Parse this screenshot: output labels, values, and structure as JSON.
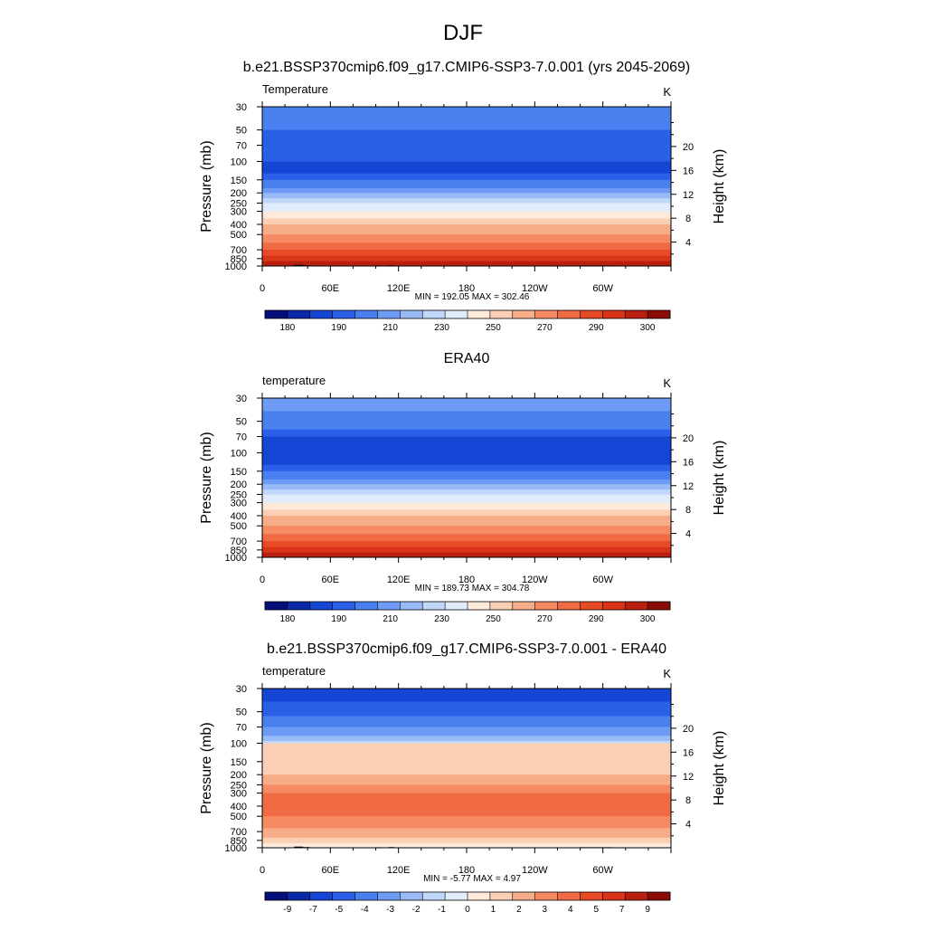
{
  "figure": {
    "title": "DJF"
  },
  "chart_data": [
    {
      "type": "heatmap",
      "title": "b.e21.BSSP370cmip6.f09_g17.CMIP6-SSP3-7.0.001 (yrs 2045-2069)",
      "variable_label": "Temperature",
      "units": "K",
      "ylabel": "Pressure (mb)",
      "y2label": "Height (km)",
      "x_ticks": [
        "0",
        "60E",
        "120E",
        "180",
        "120W",
        "60W"
      ],
      "x_tick_values": [
        0,
        60,
        120,
        180,
        240,
        300
      ],
      "xlim": [
        0,
        360
      ],
      "y_ticks": [
        30,
        50,
        70,
        100,
        150,
        200,
        250,
        300,
        400,
        500,
        700,
        850,
        1000
      ],
      "ylim": [
        1000,
        30
      ],
      "y2_ticks": [
        4,
        8,
        12,
        16,
        20
      ],
      "stats": "MIN = 192.05  MAX = 302.46",
      "colorbar_labels": [
        "180",
        "190",
        "210",
        "230",
        "250",
        "270",
        "290",
        "300"
      ],
      "colorbar_colors": [
        "#040f7a",
        "#0a29a8",
        "#1545d4",
        "#2a5fe8",
        "#4a7ff0",
        "#6e9cf4",
        "#98bbf7",
        "#c0d7fa",
        "#e0ecfc",
        "#fdeadb",
        "#fbcfb4",
        "#f8ad8a",
        "#f58a63",
        "#f06a43",
        "#e84a25",
        "#d93318",
        "#b81f0e",
        "#8a0c05"
      ],
      "profile": [
        {
          "p": 30,
          "c": 4
        },
        {
          "p": 45,
          "c": 4
        },
        {
          "p": 50,
          "c": 3
        },
        {
          "p": 100,
          "c": 2
        },
        {
          "p": 130,
          "c": 3
        },
        {
          "p": 150,
          "c": 4
        },
        {
          "p": 180,
          "c": 5
        },
        {
          "p": 200,
          "c": 6
        },
        {
          "p": 225,
          "c": 7
        },
        {
          "p": 250,
          "c": 8
        },
        {
          "p": 300,
          "c": 9
        },
        {
          "p": 350,
          "c": 10
        },
        {
          "p": 400,
          "c": 11
        },
        {
          "p": 500,
          "c": 12
        },
        {
          "p": 600,
          "c": 13
        },
        {
          "p": 700,
          "c": 14
        },
        {
          "p": 800,
          "c": 15
        },
        {
          "p": 900,
          "c": 16
        },
        {
          "p": 1000,
          "c": 16
        }
      ],
      "topography": true
    },
    {
      "type": "heatmap",
      "title": "ERA40",
      "variable_label": "temperature",
      "units": "K",
      "ylabel": "Pressure (mb)",
      "y2label": "Height (km)",
      "x_ticks": [
        "0",
        "60E",
        "120E",
        "180",
        "120W",
        "60W"
      ],
      "x_tick_values": [
        0,
        60,
        120,
        180,
        240,
        300
      ],
      "xlim": [
        0,
        360
      ],
      "y_ticks": [
        30,
        50,
        70,
        100,
        150,
        200,
        250,
        300,
        400,
        500,
        700,
        850,
        1000
      ],
      "ylim": [
        1000,
        30
      ],
      "y2_ticks": [
        4,
        8,
        12,
        16,
        20
      ],
      "stats": "MIN = 189.73  MAX = 304.78",
      "colorbar_labels": [
        "180",
        "190",
        "210",
        "230",
        "250",
        "270",
        "290",
        "300"
      ],
      "colorbar_colors": [
        "#040f7a",
        "#0a29a8",
        "#1545d4",
        "#2a5fe8",
        "#4a7ff0",
        "#6e9cf4",
        "#98bbf7",
        "#c0d7fa",
        "#e0ecfc",
        "#fdeadb",
        "#fbcfb4",
        "#f8ad8a",
        "#f58a63",
        "#f06a43",
        "#e84a25",
        "#d93318",
        "#b81f0e",
        "#8a0c05"
      ],
      "profile": [
        {
          "p": 30,
          "c": 5
        },
        {
          "p": 40,
          "c": 4
        },
        {
          "p": 60,
          "c": 3
        },
        {
          "p": 70,
          "c": 2
        },
        {
          "p": 130,
          "c": 3
        },
        {
          "p": 150,
          "c": 4
        },
        {
          "p": 180,
          "c": 5
        },
        {
          "p": 200,
          "c": 6
        },
        {
          "p": 225,
          "c": 7
        },
        {
          "p": 250,
          "c": 8
        },
        {
          "p": 300,
          "c": 9
        },
        {
          "p": 350,
          "c": 10
        },
        {
          "p": 400,
          "c": 11
        },
        {
          "p": 500,
          "c": 12
        },
        {
          "p": 600,
          "c": 13
        },
        {
          "p": 700,
          "c": 14
        },
        {
          "p": 800,
          "c": 15
        },
        {
          "p": 900,
          "c": 16
        },
        {
          "p": 1000,
          "c": 17
        }
      ],
      "topography": false
    },
    {
      "type": "heatmap",
      "title": "b.e21.BSSP370cmip6.f09_g17.CMIP6-SSP3-7.0.001 - ERA40",
      "variable_label": "temperature",
      "units": "K",
      "ylabel": "Pressure (mb)",
      "y2label": "Height (km)",
      "x_ticks": [
        "0",
        "60E",
        "120E",
        "180",
        "120W",
        "60W"
      ],
      "x_tick_values": [
        0,
        60,
        120,
        180,
        240,
        300
      ],
      "xlim": [
        0,
        360
      ],
      "y_ticks": [
        30,
        50,
        70,
        100,
        150,
        200,
        250,
        300,
        400,
        500,
        700,
        850,
        1000
      ],
      "ylim": [
        1000,
        30
      ],
      "y2_ticks": [
        4,
        8,
        12,
        16,
        20
      ],
      "stats": "MIN =  -5.77  MAX =   4.97",
      "colorbar_labels": [
        "-9",
        "-7",
        "-5",
        "-4",
        "-3",
        "-2",
        "-1",
        "0",
        "1",
        "2",
        "3",
        "4",
        "5",
        "7",
        "9"
      ],
      "colorbar_colors": [
        "#040f7a",
        "#0a29a8",
        "#1545d4",
        "#2a5fe8",
        "#4a7ff0",
        "#6e9cf4",
        "#98bbf7",
        "#c0d7fa",
        "#e0ecfc",
        "#fdeadb",
        "#fbcfb4",
        "#f8ad8a",
        "#f58a63",
        "#f06a43",
        "#e84a25",
        "#d93318",
        "#b81f0e",
        "#8a0c05"
      ],
      "profile": [
        {
          "p": 30,
          "c": 2
        },
        {
          "p": 40,
          "c": 3
        },
        {
          "p": 55,
          "c": 4
        },
        {
          "p": 70,
          "c": 5
        },
        {
          "p": 85,
          "c": 6
        },
        {
          "p": 95,
          "c": 7
        },
        {
          "p": 100,
          "c": 10
        },
        {
          "p": 200,
          "c": 11
        },
        {
          "p": 250,
          "c": 12
        },
        {
          "p": 300,
          "c": 13
        },
        {
          "p": 420,
          "c": 13
        },
        {
          "p": 500,
          "c": 12
        },
        {
          "p": 650,
          "c": 11
        },
        {
          "p": 800,
          "c": 10
        },
        {
          "p": 900,
          "c": 9
        },
        {
          "p": 1000,
          "c": 9
        }
      ],
      "topography": true
    }
  ]
}
